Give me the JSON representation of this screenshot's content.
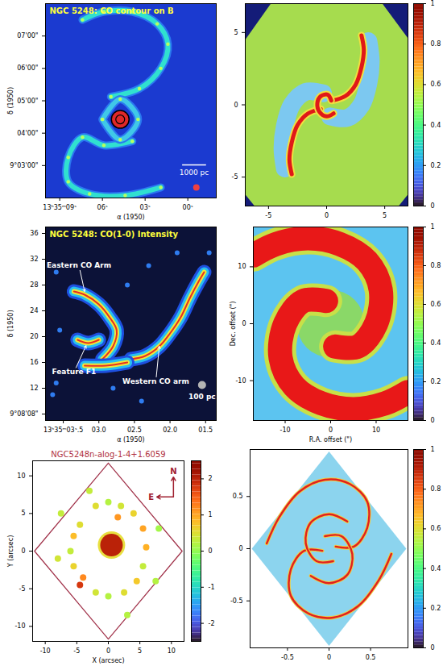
{
  "chart_data": [
    {
      "type": "image",
      "title": "NGC 5248: CO contour on B",
      "x_label": "α (1950)",
      "y_label": "δ (1950)",
      "xlim": [
        10,
        -2
      ],
      "xticks": [
        {
          "value": 9,
          "label": "13ʰ35ᵐ09ˢ"
        },
        {
          "value": 6,
          "label": "06ˢ"
        },
        {
          "value": 3,
          "label": "03ˢ"
        },
        {
          "value": 0,
          "label": "00ˢ"
        }
      ],
      "ylim": [
        -180,
        180
      ],
      "yticks": [
        {
          "value": -120,
          "label": "9°03'00\""
        },
        {
          "value": -60,
          "label": "04'00\""
        },
        {
          "value": 0,
          "label": "05'00\""
        },
        {
          "value": 60,
          "label": "06'00\""
        },
        {
          "value": 120,
          "label": "07'00\""
        }
      ],
      "background": "#1b3ad0",
      "arms": [
        {
          "x": [
            5.4,
            3.4,
            1.9,
            1.4,
            2.15,
            3.9,
            5.9,
            7.4
          ],
          "y": [
            7.5,
            22.5,
            60,
            105,
            142.5,
            165,
            165,
            150
          ],
          "color": "#30e0d0"
        },
        {
          "x": [
            3.9,
            5.9,
            7.4,
            8.4,
            8.4,
            6.9,
            4.4,
            1.9
          ],
          "y": [
            -75,
            -82.5,
            -67.5,
            -105,
            -150,
            -172.5,
            -175.5,
            -160.5
          ],
          "color": "#30e0d0"
        },
        {
          "x": [
            6.0,
            4.75,
            3.5,
            4.75,
            6.0
          ],
          "y": [
            -34.5,
            3,
            -34.5,
            -72,
            -34.5
          ],
          "color": "#40c8e8"
        }
      ],
      "nucleus": {
        "x": 4.75,
        "y": -34.5,
        "color": "#e02828"
      },
      "spots": [
        {
          "x": -0.6,
          "y": -160.5,
          "color": "#f04040"
        }
      ],
      "scale_bar": "1000 pc"
    },
    {
      "type": "simulation",
      "xlim": [
        -7,
        7
      ],
      "xticks": [
        -5,
        0,
        5
      ],
      "ylim": [
        -7,
        7
      ],
      "yticks": [
        -5,
        0,
        5
      ],
      "background": "#141c78",
      "footprint": {
        "x": [
          -7,
          -4.8,
          4.8,
          7,
          7,
          6.2,
          -6.2,
          -7,
          -7
        ],
        "y": [
          4.5,
          7,
          7,
          4.6,
          -6.2,
          -7,
          -7,
          -6.2,
          4.5
        ],
        "color": "#a6dc4e"
      },
      "interarm": [
        {
          "x": [
            0.3,
            1.8,
            3.0,
            3.6,
            3.8,
            3.6
          ],
          "y": [
            -0.8,
            -0.9,
            0,
            1.5,
            3,
            4.4
          ],
          "color": "#7cc8f0"
        },
        {
          "x": [
            -0.3,
            -1.8,
            -3.0,
            -3.6,
            -3.8,
            -3.6
          ],
          "y": [
            0.8,
            0.9,
            0,
            -1.5,
            -3,
            -4.4
          ],
          "color": "#7cc8f0"
        }
      ],
      "arms": [
        {
          "x": [
            0.5,
            1.6,
            2.5,
            3.0,
            3.2,
            3.0
          ],
          "y": [
            0.3,
            0.6,
            1.4,
            2.6,
            3.8,
            4.8
          ],
          "color": "#e01818"
        },
        {
          "x": [
            -0.5,
            -1.6,
            -2.5,
            -3.0,
            -3.2,
            -3.0
          ],
          "y": [
            -0.3,
            -0.6,
            -1.4,
            -2.6,
            -3.8,
            -4.8
          ],
          "color": "#e01818"
        },
        {
          "x": [
            0.4,
            0.1,
            -0.5,
            -0.8,
            -0.6,
            0,
            0.6
          ],
          "y": [
            0.3,
            0.7,
            0.6,
            0.1,
            -0.5,
            -0.8,
            -0.6
          ],
          "color": "#e01818"
        }
      ],
      "colorbar": {
        "range": [
          0,
          1
        ],
        "ticks": [
          0,
          0.2,
          0.4,
          0.6,
          0.8,
          1
        ]
      }
    },
    {
      "type": "image",
      "title": "NGC 5248: CO(1-0) Intensity",
      "x_label": "α (1950)",
      "y_label": "δ (1950)",
      "xlim": [
        3.75,
        1.35
      ],
      "xticks": [
        {
          "value": 3.5,
          "label": "13ʰ35ᵐ03ˢ.5"
        },
        {
          "value": 3,
          "label": "03.0"
        },
        {
          "value": 2.5,
          "label": "02.5"
        },
        {
          "value": 2,
          "label": "02.0"
        },
        {
          "value": 1.5,
          "label": "01.5"
        }
      ],
      "ylim": [
        7,
        37
      ],
      "yticks": [
        {
          "value": 8,
          "label": "9°08'08\""
        },
        12,
        16,
        20,
        24,
        28,
        32,
        36
      ],
      "background": "#0c1238",
      "arms": [
        {
          "x": [
            3.35,
            3.2,
            3.0,
            2.85,
            2.75,
            2.8,
            2.95
          ],
          "y": [
            27,
            26.5,
            25,
            23,
            21,
            18.5,
            16.5
          ],
          "color": "#f0e838"
        },
        {
          "x": [
            2.55,
            2.35,
            2.15,
            2.0,
            1.85,
            1.72,
            1.6,
            1.52
          ],
          "y": [
            16.5,
            17,
            18.5,
            20.5,
            23,
            26,
            28.5,
            30
          ],
          "color": "#f0e838"
        },
        {
          "x": [
            3.3,
            3.15,
            3.0
          ],
          "y": [
            19.5,
            19,
            19.5
          ],
          "color": "#f0e838"
        },
        {
          "x": [
            3.2,
            2.9,
            2.6
          ],
          "y": [
            15.5,
            15.5,
            16
          ],
          "color": "#f0e838"
        }
      ],
      "spots": [
        {
          "x": 3.6,
          "y": 30,
          "color": "#2f7cf0"
        },
        {
          "x": 3.55,
          "y": 21,
          "color": "#2f7cf0"
        },
        {
          "x": 3.6,
          "y": 12.8,
          "color": "#2f7cf0"
        },
        {
          "x": 2.6,
          "y": 28,
          "color": "#2f7cf0"
        },
        {
          "x": 2.3,
          "y": 31,
          "color": "#2f7cf0"
        },
        {
          "x": 1.9,
          "y": 33,
          "color": "#2f7cf0"
        },
        {
          "x": 1.45,
          "y": 33,
          "color": "#2f7cf0"
        },
        {
          "x": 3.65,
          "y": 11,
          "color": "#2f7cf0"
        },
        {
          "x": 2.4,
          "y": 10,
          "color": "#2f7cf0"
        },
        {
          "x": 2.8,
          "y": 12,
          "color": "#2f7cf0"
        }
      ],
      "annotations": [
        {
          "text": "Eastern CO Arm",
          "x": 3.28,
          "y": 31,
          "arrow_x": 3.2,
          "arrow_y": 27
        },
        {
          "text": "Feature F1",
          "x": 3.35,
          "y": 14.5,
          "arrow_x": 3.18,
          "arrow_y": 18.6
        },
        {
          "text": "Western CO arm",
          "x": 2.2,
          "y": 13,
          "arrow_x": 2.15,
          "arrow_y": 18.5
        }
      ],
      "beam": {
        "x": 1.55,
        "y": 12.5
      },
      "scale_bar": "100 pc"
    },
    {
      "type": "simulation",
      "x_label": "R.A. offset (\")",
      "y_label": "Dec. offset (\")",
      "xlim": [
        -17,
        17
      ],
      "xticks": [
        -10,
        0,
        10
      ],
      "ylim": [
        -17,
        17
      ],
      "yticks": [
        -10,
        0,
        10
      ],
      "background": "#5cc4f0",
      "spots": [
        {
          "x": 0,
          "y": 0,
          "color": "#8ad868"
        }
      ],
      "arms": [
        {
          "x": [
            1,
            6,
            10,
            11,
            8,
            2,
            -5,
            -12,
            -17
          ],
          "y": [
            -4,
            -4,
            0,
            6,
            11,
            14,
            15,
            14,
            12
          ],
          "color": "#e81818"
        },
        {
          "x": [
            -1,
            -6,
            -10,
            -11,
            -8,
            -2,
            5,
            12,
            17
          ],
          "y": [
            4,
            4,
            0,
            -6,
            -11,
            -14,
            -15,
            -14,
            -12
          ],
          "color": "#e81818"
        }
      ],
      "colorbar": {
        "range": [
          0,
          1
        ],
        "ticks": [
          0,
          0.2,
          0.4,
          0.6,
          0.8,
          1
        ]
      }
    },
    {
      "type": "map",
      "title": "NGC5248n-alog-1-4+1.6059",
      "x_label": "X (arcsec)",
      "y_label": "Y (arcsec)",
      "xlim": [
        -12,
        12
      ],
      "xticks": [
        -10,
        -5,
        0,
        5,
        10
      ],
      "ylim": [
        -12,
        12
      ],
      "yticks": [
        -10,
        -5,
        0,
        5,
        10
      ],
      "footprint": {
        "x": [
          0,
          11.7,
          0,
          -11.7,
          0
        ],
        "y": [
          11.7,
          0,
          -11.7,
          0,
          11.7
        ],
        "color": "#ffffff",
        "line_style": "solid"
      },
      "nucleus": {
        "x": 0.5,
        "y": 0.8,
        "value": 2
      },
      "clumps": {
        "x": [
          -4.5,
          -5.5,
          -6,
          -5.5,
          -4,
          -4.5,
          -2,
          0,
          2.5,
          4.5,
          5.5,
          6,
          5.5,
          4,
          2,
          0,
          -2,
          -7.5,
          -8,
          7.5,
          8,
          -3,
          3,
          1.5
        ],
        "y": [
          3.5,
          2,
          0,
          -2,
          -3.5,
          -4.5,
          -5.5,
          -6,
          -5.5,
          -4,
          -2,
          0.5,
          3,
          5,
          6,
          6.5,
          6,
          5,
          -1,
          -4,
          3,
          8,
          -8.5,
          4.5
        ],
        "values": [
          0.5,
          0.8,
          0.3,
          0.6,
          1.2,
          1.8,
          0.4,
          0.2,
          0.5,
          0.7,
          0.3,
          0.9,
          1.0,
          0.6,
          0.4,
          0.2,
          0.5,
          0.3,
          0.4,
          0.2,
          0.1,
          0.3,
          0.2,
          1.1
        ]
      },
      "compass": [
        "N",
        "E"
      ],
      "colorbar": {
        "range": [
          -2.5,
          2.5
        ],
        "ticks": [
          -2,
          -1,
          0,
          1,
          2
        ]
      }
    },
    {
      "type": "simulation",
      "xlim": [
        -0.95,
        0.95
      ],
      "xticks": [
        -0.5,
        0,
        0.5
      ],
      "ylim": [
        -0.95,
        0.95
      ],
      "yticks": [
        -0.5,
        0,
        0.5
      ],
      "footprint": {
        "x": [
          0,
          0.93,
          0,
          -0.93,
          0
        ],
        "y": [
          0.93,
          0,
          -0.93,
          0,
          0.93
        ],
        "color": "#8cd4ee"
      },
      "arms": [
        {
          "x": [
            0.08,
            0.3,
            0.46,
            0.46,
            0.25,
            -0.05,
            -0.35,
            -0.6,
            -0.75
          ],
          "y": [
            0.02,
            0.02,
            0.2,
            0.45,
            0.62,
            0.66,
            0.55,
            0.3,
            0.05
          ],
          "color": "#e02020"
        },
        {
          "x": [
            -0.08,
            -0.3,
            -0.46,
            -0.46,
            -0.25,
            0.05,
            0.35,
            0.6,
            0.75
          ],
          "y": [
            -0.02,
            -0.02,
            -0.2,
            -0.45,
            -0.62,
            -0.66,
            -0.55,
            -0.3,
            -0.05
          ],
          "color": "#e02020"
        },
        {
          "x": [
            0.05,
            -0.15,
            -0.28,
            -0.22,
            0,
            0.22
          ],
          "y": [
            -0.12,
            -0.12,
            0.05,
            0.25,
            0.33,
            0.26
          ],
          "color": "#e02020"
        },
        {
          "x": [
            -0.05,
            0.15,
            0.28,
            0.22,
            0,
            -0.22
          ],
          "y": [
            0.12,
            0.12,
            -0.05,
            -0.25,
            -0.33,
            -0.26
          ],
          "color": "#e02020"
        }
      ],
      "colorbar": {
        "range": [
          0,
          1
        ],
        "ticks": [
          0,
          0.2,
          0.4,
          0.6,
          0.8,
          1
        ]
      }
    }
  ]
}
